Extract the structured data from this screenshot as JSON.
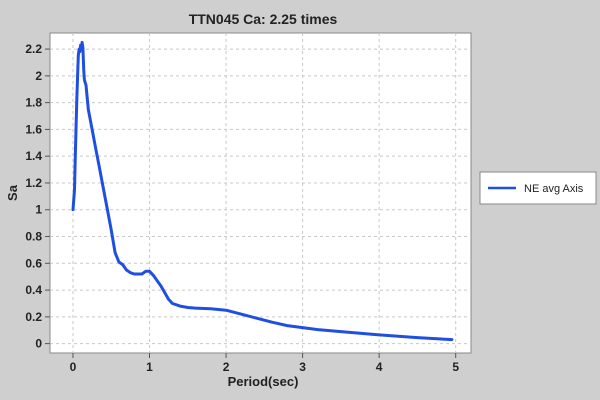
{
  "chart_data": {
    "type": "line",
    "title": "TTN045 Ca: 2.25 times",
    "xlabel": "Period(sec)",
    "ylabel": "Sa",
    "xlim": [
      -0.3,
      5.2
    ],
    "ylim": [
      -0.07,
      2.32
    ],
    "x_ticks": [
      0,
      1,
      2,
      3,
      4,
      5
    ],
    "y_ticks": [
      0,
      0.2,
      0.4,
      0.6,
      0.8,
      1,
      1.2,
      1.4,
      1.6,
      1.8,
      2,
      2.2
    ],
    "x_tick_labels": [
      "0",
      "1",
      "2",
      "3",
      "4",
      "5"
    ],
    "y_tick_labels": [
      "0",
      "0.2",
      "0.4",
      "0.6",
      "0.8",
      "1",
      "1.2",
      "1.4",
      "1.6",
      "1.8",
      "2",
      "2.2"
    ],
    "grid": true,
    "legend": "right",
    "colors": {
      "series": "#1f4fe0",
      "plot_bg": "#ffffff",
      "page_bg": "#cfcfcf",
      "grid": "#c8c8c8"
    },
    "series": [
      {
        "name": "NE avg Axis",
        "x": [
          0.0,
          0.02,
          0.03,
          0.04,
          0.05,
          0.06,
          0.07,
          0.08,
          0.09,
          0.1,
          0.11,
          0.12,
          0.13,
          0.14,
          0.15,
          0.17,
          0.2,
          0.25,
          0.3,
          0.35,
          0.4,
          0.45,
          0.5,
          0.55,
          0.6,
          0.65,
          0.7,
          0.75,
          0.8,
          0.9,
          0.95,
          1.0,
          1.05,
          1.1,
          1.15,
          1.2,
          1.25,
          1.3,
          1.4,
          1.5,
          1.6,
          1.8,
          2.0,
          2.2,
          2.4,
          2.6,
          2.8,
          3.0,
          3.2,
          3.5,
          4.0,
          4.5,
          4.95
        ],
        "y": [
          1.0,
          1.15,
          1.4,
          1.6,
          1.82,
          2.0,
          2.15,
          2.2,
          2.18,
          2.23,
          2.2,
          2.25,
          2.21,
          2.05,
          1.97,
          1.93,
          1.75,
          1.6,
          1.45,
          1.3,
          1.15,
          1.0,
          0.85,
          0.68,
          0.61,
          0.59,
          0.55,
          0.53,
          0.52,
          0.52,
          0.54,
          0.54,
          0.51,
          0.47,
          0.43,
          0.38,
          0.33,
          0.3,
          0.28,
          0.27,
          0.265,
          0.26,
          0.25,
          0.22,
          0.19,
          0.16,
          0.135,
          0.12,
          0.105,
          0.09,
          0.065,
          0.045,
          0.03
        ]
      }
    ]
  }
}
